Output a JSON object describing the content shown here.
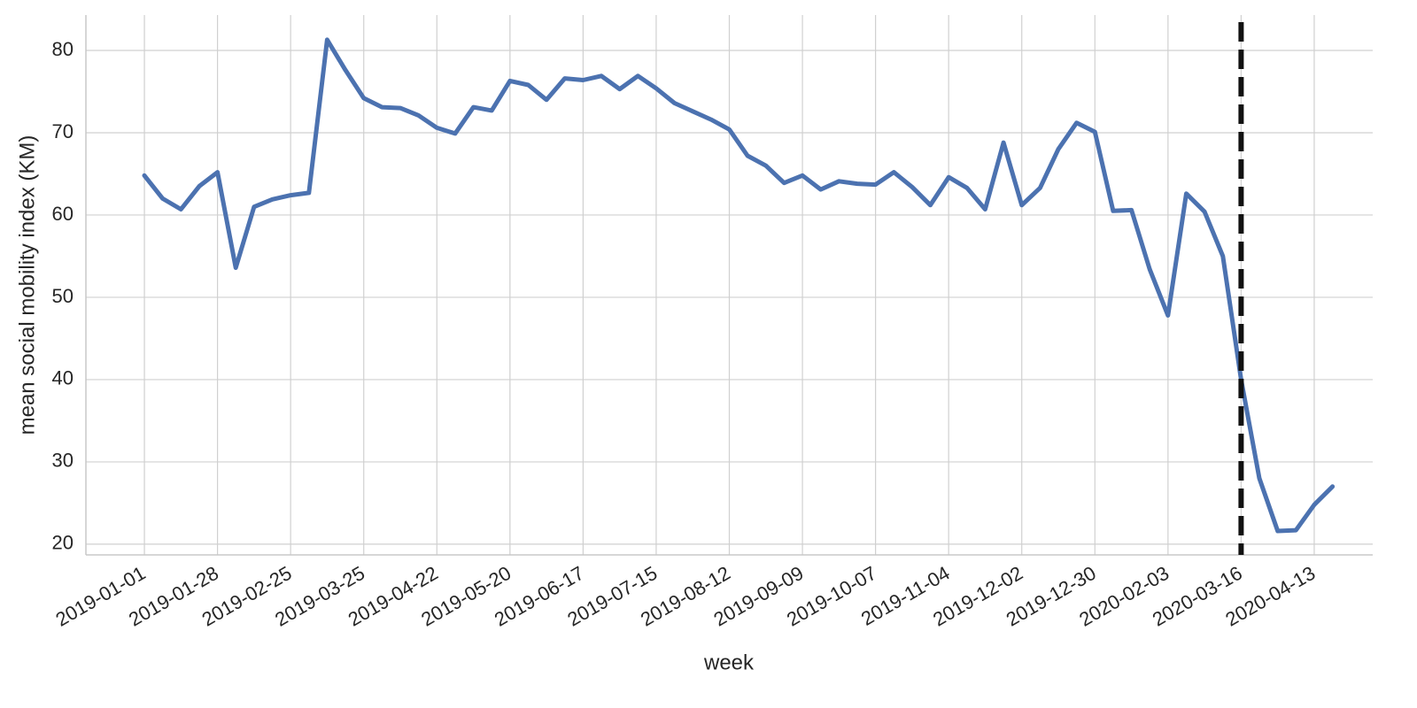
{
  "chart_data": {
    "type": "line",
    "xlabel": "week",
    "ylabel": "mean social mobility index (KM)",
    "categories": [
      "2019-01-01",
      null,
      null,
      null,
      "2019-01-28",
      null,
      null,
      null,
      "2019-02-25",
      null,
      null,
      null,
      "2019-03-25",
      null,
      null,
      null,
      "2019-04-22",
      null,
      null,
      null,
      "2019-05-20",
      null,
      null,
      null,
      "2019-06-17",
      null,
      null,
      null,
      "2019-07-15",
      null,
      null,
      null,
      "2019-08-12",
      null,
      null,
      null,
      "2019-09-09",
      null,
      null,
      null,
      "2019-10-07",
      null,
      null,
      null,
      "2019-11-04",
      null,
      null,
      null,
      "2019-12-02",
      null,
      null,
      null,
      "2019-12-30",
      null,
      null,
      null,
      "2020-02-03",
      null,
      null,
      null,
      "2020-03-16",
      null,
      null,
      null,
      "2020-04-13",
      null
    ],
    "series": [
      {
        "color": "#4c72b0",
        "values": [
          64.8,
          62,
          60.7,
          63.5,
          65.2,
          53.6,
          61,
          61.9,
          62.4,
          62.7,
          81.3,
          77.6,
          74.2,
          73.1,
          73,
          72.1,
          70.6,
          69.9,
          73.1,
          72.7,
          76.3,
          75.8,
          74,
          76.6,
          76.4,
          76.9,
          75.3,
          76.9,
          75.4,
          73.6,
          72.6,
          71.6,
          70.4,
          67.2,
          66,
          63.9,
          64.8,
          63.1,
          64.1,
          63.8,
          63.7,
          65.2,
          63.4,
          61.2,
          64.6,
          63.3,
          60.7,
          68.8,
          61.2,
          63.3,
          68,
          71.2,
          70.1,
          60.5,
          60.6,
          53.4,
          47.8,
          62.6,
          60.4,
          55,
          40,
          28,
          21.6,
          21.7,
          24.8,
          27
        ]
      }
    ],
    "ylim": [
      18.7,
      84.3
    ],
    "yticks": [
      20,
      30,
      40,
      50,
      60,
      70,
      80
    ],
    "grid": true,
    "vline": {
      "x": "2020-03-16",
      "color": "#111111",
      "style": "dashed"
    }
  }
}
